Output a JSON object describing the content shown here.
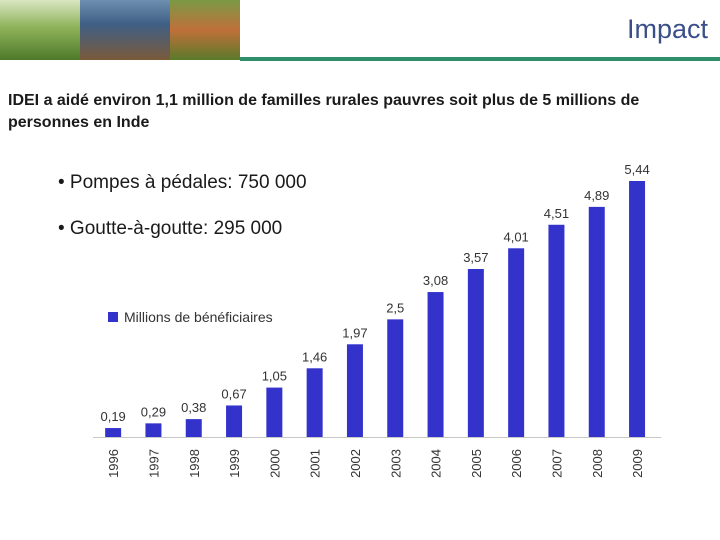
{
  "header": {
    "title": "Impact"
  },
  "intro_text": "IDEI a aidé environ 1,1 million de familles rurales pauvres soit plus de 5 millions de personnes en Inde",
  "bullets": [
    "• Pompes à pédales: 750 000",
    "• Goutte-à-goutte: 295 000"
  ],
  "colors": {
    "bar": "#3333cc",
    "title": "#3a4f8a",
    "rule": "#2f8f6a"
  },
  "chart_data": {
    "type": "bar",
    "categories": [
      "1996",
      "1997",
      "1998",
      "1999",
      "2000",
      "2001",
      "2002",
      "2003",
      "2004",
      "2005",
      "2006",
      "2007",
      "2008",
      "2009"
    ],
    "series": [
      {
        "name": "Millions de bénéficiaires",
        "values": [
          0.19,
          0.29,
          0.38,
          0.67,
          1.05,
          1.46,
          1.97,
          2.5,
          3.08,
          3.57,
          4.01,
          4.51,
          4.89,
          5.44
        ]
      }
    ],
    "data_labels": [
      "0,19",
      "0,29",
      "0,38",
      "0,67",
      "1,05",
      "1,46",
      "1,97",
      "2,5",
      "3,08",
      "3,57",
      "4,01",
      "4,51",
      "4,89",
      "5,44"
    ],
    "ylim": [
      0,
      5.44
    ],
    "legend_position": "upper-left",
    "grid": false
  }
}
